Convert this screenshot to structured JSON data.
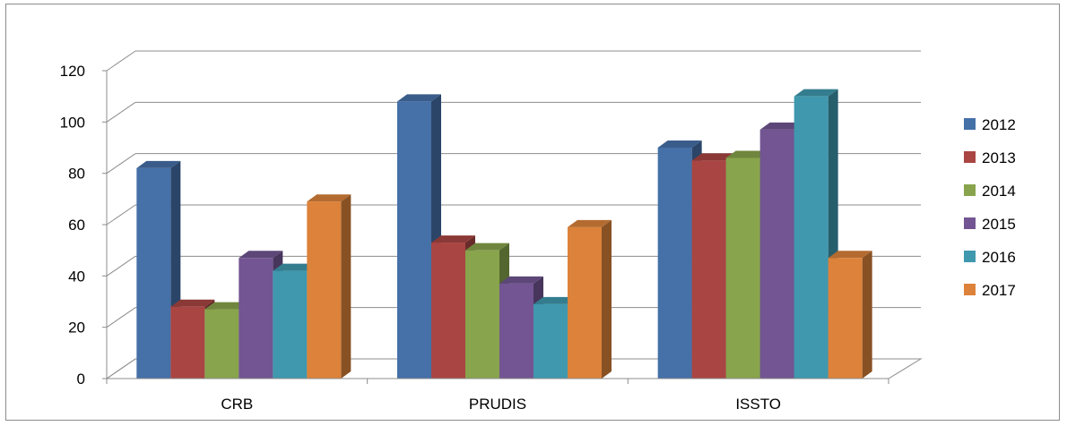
{
  "chart_data": {
    "type": "bar",
    "title": "",
    "xlabel": "",
    "ylabel": "",
    "categories": [
      "CRB",
      "PRUDIS",
      "ISSTO"
    ],
    "series": [
      {
        "name": "2012",
        "color": "#4570A8",
        "values": [
          82,
          108,
          90
        ]
      },
      {
        "name": "2013",
        "color": "#A94542",
        "values": [
          28,
          53,
          85
        ]
      },
      {
        "name": "2014",
        "color": "#88A44C",
        "values": [
          27,
          50,
          86
        ]
      },
      {
        "name": "2015",
        "color": "#725592",
        "values": [
          47,
          37,
          97
        ]
      },
      {
        "name": "2016",
        "color": "#3F98AE",
        "values": [
          42,
          29,
          110
        ]
      },
      {
        "name": "2017",
        "color": "#DC823A",
        "values": [
          69,
          59,
          47
        ]
      }
    ],
    "ylim": [
      0,
      120
    ],
    "yticks": [
      0,
      20,
      40,
      60,
      80,
      100,
      120
    ],
    "grid": true,
    "legend_position": "right",
    "style": "3d-clustered-column"
  }
}
